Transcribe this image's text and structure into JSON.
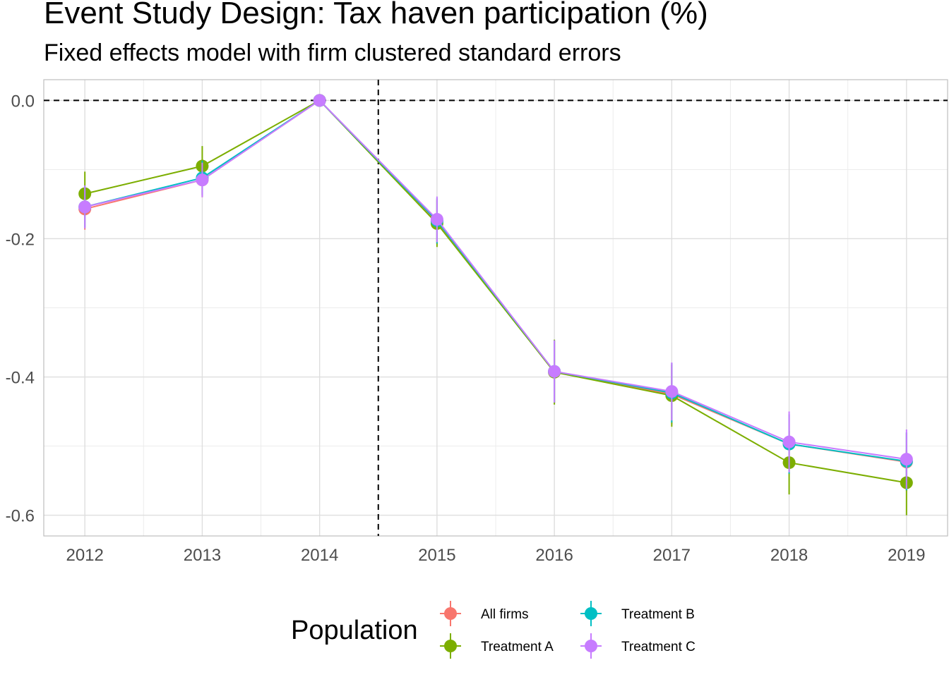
{
  "chart_data": {
    "type": "line",
    "title": "Event Study Design: Tax haven participation (%)",
    "subtitle": "Fixed effects model with firm clustered standard errors",
    "xlabel": "",
    "ylabel": "",
    "x": [
      2012,
      2013,
      2014,
      2015,
      2016,
      2017,
      2018,
      2019
    ],
    "xlim": [
      2011.65,
      2019.35
    ],
    "ylim": [
      -0.63,
      0.03
    ],
    "y_ticks": [
      "0.0",
      "-0.2",
      "-0.4",
      "-0.6"
    ],
    "y_tick_values": [
      0.0,
      -0.2,
      -0.4,
      -0.6
    ],
    "reference_lines": {
      "horizontal": 0.0,
      "vertical": 2014.5
    },
    "grid": true,
    "legend": {
      "title": "Population",
      "position": "bottom"
    },
    "series": [
      {
        "name": "All firms",
        "color": "#F8766D",
        "values": [
          -0.157,
          -0.115,
          0.0,
          -0.175,
          -0.393,
          -0.425,
          -0.497,
          -0.523
        ],
        "lower": [
          -0.187,
          -0.14,
          0.0,
          -0.208,
          -0.438,
          -0.468,
          -0.54,
          -0.565
        ],
        "upper": [
          -0.127,
          -0.09,
          0.0,
          -0.142,
          -0.348,
          -0.382,
          -0.454,
          -0.481
        ]
      },
      {
        "name": "Treatment A",
        "color": "#7CAE00",
        "values": [
          -0.135,
          -0.095,
          0.0,
          -0.178,
          -0.393,
          -0.427,
          -0.524,
          -0.553
        ],
        "lower": [
          -0.167,
          -0.124,
          0.0,
          -0.212,
          -0.44,
          -0.472,
          -0.57,
          -0.6
        ],
        "upper": [
          -0.103,
          -0.066,
          0.0,
          -0.144,
          -0.346,
          -0.382,
          -0.478,
          -0.506
        ]
      },
      {
        "name": "Treatment B",
        "color": "#00BFC4",
        "values": [
          -0.154,
          -0.112,
          0.0,
          -0.174,
          -0.392,
          -0.423,
          -0.497,
          -0.522
        ],
        "lower": [
          -0.184,
          -0.137,
          0.0,
          -0.207,
          -0.437,
          -0.466,
          -0.54,
          -0.564
        ],
        "upper": [
          -0.124,
          -0.087,
          0.0,
          -0.141,
          -0.347,
          -0.38,
          -0.454,
          -0.48
        ]
      },
      {
        "name": "Treatment C",
        "color": "#C77CFF",
        "values": [
          -0.154,
          -0.115,
          0.0,
          -0.172,
          -0.392,
          -0.421,
          -0.494,
          -0.519
        ],
        "lower": [
          -0.185,
          -0.14,
          0.0,
          -0.205,
          -0.437,
          -0.463,
          -0.538,
          -0.562
        ],
        "upper": [
          -0.123,
          -0.09,
          0.0,
          -0.139,
          -0.347,
          -0.379,
          -0.45,
          -0.476
        ]
      }
    ]
  }
}
